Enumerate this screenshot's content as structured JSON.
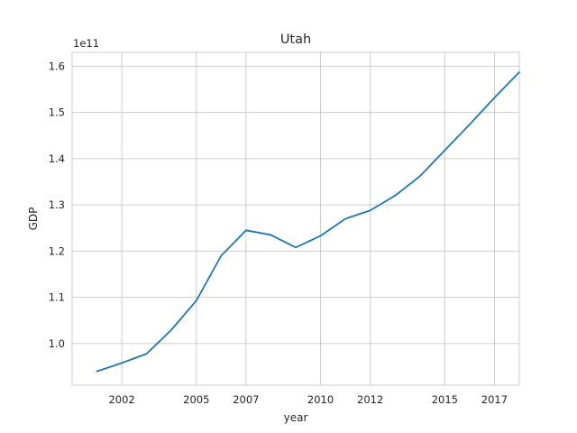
{
  "chart_data": {
    "type": "line",
    "title": "Utah",
    "xlabel": "year",
    "ylabel": "GDP",
    "offset_text": "1e11",
    "x_ticks": [
      2002,
      2005,
      2007,
      2010,
      2012,
      2015,
      2017
    ],
    "y_ticks": [
      1.0,
      1.1,
      1.2,
      1.3,
      1.4,
      1.5,
      1.6
    ],
    "y_tick_labels": [
      "1.0",
      "1.1",
      "1.2",
      "1.3",
      "1.4",
      "1.5",
      "1.6"
    ],
    "xlim": [
      2000,
      2018
    ],
    "ylim": [
      0.91,
      1.63
    ],
    "grid": true,
    "color": "#1f77b4",
    "x": [
      2001,
      2002,
      2003,
      2004,
      2005,
      2006,
      2007,
      2008,
      2009,
      2010,
      2011,
      2012,
      2013,
      2014,
      2015,
      2016,
      2017,
      2018
    ],
    "values": [
      0.94,
      0.958,
      0.978,
      1.03,
      1.093,
      1.19,
      1.245,
      1.235,
      1.208,
      1.233,
      1.27,
      1.288,
      1.32,
      1.362,
      1.418,
      1.474,
      1.532,
      1.587
    ]
  }
}
